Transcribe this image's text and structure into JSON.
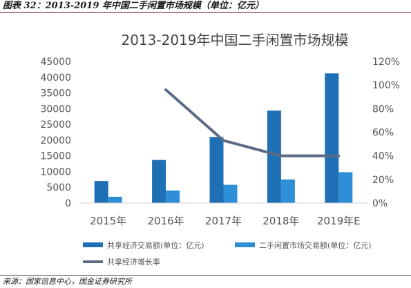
{
  "figure": {
    "caption": "图表 32：2013-2019 年中国二手闲置市场规模（单位：亿元）",
    "source": "来源：国家信息中心，国金证券研究所"
  },
  "chart_data": {
    "type": "bar",
    "title": "2013-2019年中国二手闲置市场规模",
    "categories": [
      "2015年",
      "2016年",
      "2017年",
      "2018年",
      "2019年E"
    ],
    "series": [
      {
        "name": "共享经济交易额(单位：亿元)",
        "kind": "bar",
        "axis": "left",
        "color": "#1f6fb5",
        "values": [
          7000,
          13700,
          21000,
          29400,
          41200
        ]
      },
      {
        "name": "二手闲置市场交易额(单位：亿元)",
        "kind": "bar",
        "axis": "left",
        "color": "#2e8fd6",
        "values": [
          2000,
          4000,
          5800,
          7500,
          9800
        ]
      },
      {
        "name": "共享经济增长率",
        "kind": "line",
        "axis": "right",
        "color": "#5b6b86",
        "values": [
          null,
          0.96,
          0.53,
          0.4,
          0.4
        ]
      }
    ],
    "y_left": {
      "ylim": [
        0,
        45000
      ],
      "ticks": [
        0,
        5000,
        10000,
        15000,
        20000,
        25000,
        30000,
        35000,
        40000,
        45000
      ]
    },
    "y_right": {
      "ylim": [
        0,
        1.2
      ],
      "ticks": [
        0,
        0.2,
        0.4,
        0.6,
        0.8,
        1.0,
        1.2
      ],
      "tick_labels": [
        "0%",
        "20%",
        "40%",
        "60%",
        "80%",
        "100%",
        "120%"
      ]
    },
    "grid": false,
    "legend_position": "bottom"
  }
}
